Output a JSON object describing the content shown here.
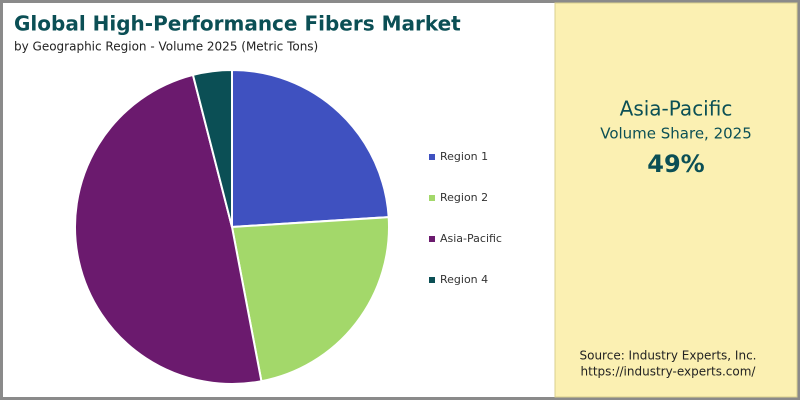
{
  "title": "Global High-Performance Fibers Market",
  "subtitle": "by Geographic Region - Volume 2025 (Metric Tons)",
  "chart_data": {
    "type": "pie",
    "categories": [
      "Region 1",
      "Region 2",
      "Asia-Pacific",
      "Region 4"
    ],
    "values": [
      24,
      23,
      49,
      4
    ],
    "colors": [
      "#3f51c0",
      "#a3d86a",
      "#6b1a6e",
      "#0b4f55"
    ]
  },
  "callout": {
    "region": "Asia-Pacific",
    "caption": "Volume Share, 2025",
    "share": "49%"
  },
  "source": {
    "line1": "Source: Industry Experts, Inc.",
    "line2": "https://industry-experts.com/"
  }
}
